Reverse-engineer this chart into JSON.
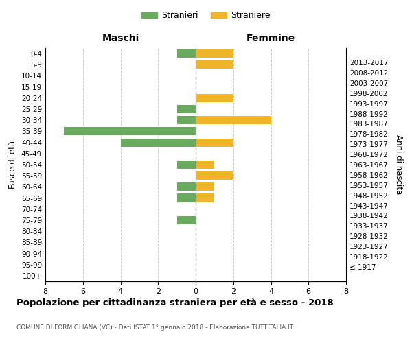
{
  "age_groups": [
    "100+",
    "95-99",
    "90-94",
    "85-89",
    "80-84",
    "75-79",
    "70-74",
    "65-69",
    "60-64",
    "55-59",
    "50-54",
    "45-49",
    "40-44",
    "35-39",
    "30-34",
    "25-29",
    "20-24",
    "15-19",
    "10-14",
    "5-9",
    "0-4"
  ],
  "birth_years": [
    "≤ 1917",
    "1918-1922",
    "1923-1927",
    "1928-1932",
    "1933-1937",
    "1938-1942",
    "1943-1947",
    "1948-1952",
    "1953-1957",
    "1958-1962",
    "1963-1967",
    "1968-1972",
    "1973-1977",
    "1978-1982",
    "1983-1987",
    "1988-1992",
    "1993-1997",
    "1998-2002",
    "2003-2007",
    "2008-2012",
    "2013-2017"
  ],
  "males": [
    0,
    0,
    0,
    0,
    0,
    1,
    0,
    1,
    1,
    0,
    1,
    0,
    4,
    7,
    1,
    1,
    0,
    0,
    0,
    0,
    1
  ],
  "females": [
    0,
    0,
    0,
    0,
    0,
    0,
    0,
    1,
    1,
    2,
    1,
    0,
    2,
    0,
    4,
    0,
    2,
    0,
    0,
    2,
    2
  ],
  "male_color": "#6aaa5e",
  "female_color": "#f0b429",
  "title": "Popolazione per cittadinanza straniera per età e sesso - 2018",
  "subtitle": "COMUNE DI FORMIGLIANA (VC) - Dati ISTAT 1° gennaio 2018 - Elaborazione TUTTITALIA.IT",
  "ylabel_left": "Fasce di età",
  "ylabel_right": "Anni di nascita",
  "xlabel_left": "Maschi",
  "xlabel_right": "Femmine",
  "legend_male": "Stranieri",
  "legend_female": "Straniere",
  "xlim": 8,
  "background_color": "#ffffff",
  "grid_color": "#cccccc",
  "bar_height": 0.75
}
